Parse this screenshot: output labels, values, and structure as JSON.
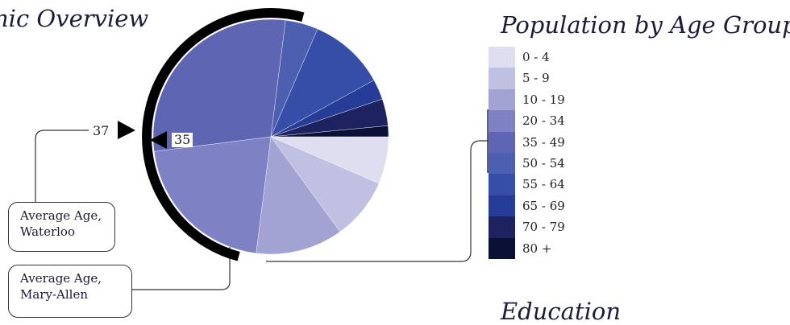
{
  "titles": {
    "overview": "nic  Overview",
    "population": "Population by Age Group",
    "education": "Education"
  },
  "chart_data": {
    "type": "pie",
    "title": "Population by Age Group",
    "categories": [
      "0 - 4",
      "5 - 9",
      "10 - 19",
      "20 - 34",
      "35 - 49",
      "50 - 54",
      "55 - 64",
      "65 - 69",
      "70 - 79",
      "80 +"
    ],
    "values": [
      6.5,
      8.5,
      12.0,
      21.0,
      29.0,
      4.5,
      10.5,
      2.8,
      3.7,
      1.5
    ],
    "colors": [
      "#dedef0",
      "#c0c0e2",
      "#a3a3d3",
      "#7e82c4",
      "#5e66b4",
      "#4d5fb1",
      "#374ea8",
      "#263c97",
      "#1f2260",
      "#0b1037"
    ],
    "averages": [
      {
        "label": "Average Age, Waterloo",
        "line1": "Average Age,",
        "line2": "Waterloo",
        "value": 37
      },
      {
        "label": "Average Age, Mary-Allen",
        "line1": "Average Age,",
        "line2": "Mary-Allen",
        "value": 35
      }
    ],
    "legend_position": "right",
    "bracket_groups": [
      "20 - 34",
      "35 - 49",
      "50 - 54"
    ]
  }
}
